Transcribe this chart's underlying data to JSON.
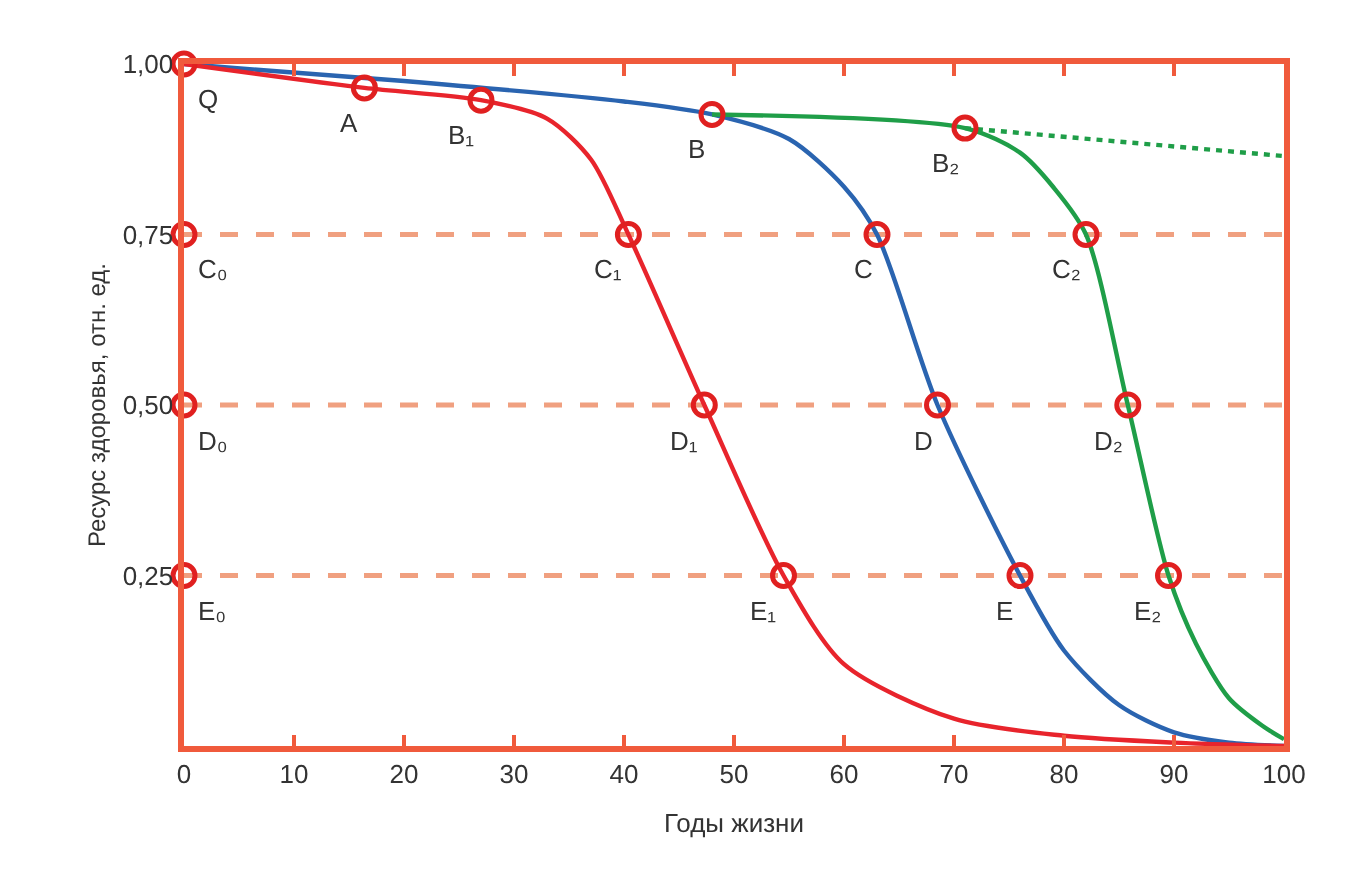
{
  "chart_data": {
    "type": "line",
    "xlabel": "Годы жизни",
    "ylabel": "Ресурс здоровья, отн. ед.",
    "xlim": [
      0,
      100
    ],
    "xticks": [
      0,
      10,
      20,
      30,
      40,
      50,
      60,
      70,
      80,
      90,
      100
    ],
    "ylim": [
      0,
      1
    ],
    "yticks": [
      {
        "value": 0.25,
        "label": "0,25"
      },
      {
        "value": 0.5,
        "label": "0,50"
      },
      {
        "value": 0.75,
        "label": "0,75"
      },
      {
        "value": 1,
        "label": "1,00"
      }
    ],
    "grid": false,
    "marker": "none",
    "line_style": "solid",
    "series": [
      {
        "color": "#2a64b0",
        "x": [
          0,
          20,
          40,
          48,
          55,
          60,
          63,
          68.5,
          76,
          80,
          85,
          90,
          95,
          100
        ],
        "values": [
          1,
          0.975,
          0.945,
          0.926,
          0.89,
          0.82,
          0.75,
          0.5,
          0.25,
          0.14,
          0.06,
          0.02,
          0.005,
          0
        ]
      },
      {
        "color": "#1f9e48",
        "x": [
          48,
          71,
          76,
          79,
          82,
          85.8,
          89.5,
          92,
          95,
          98,
          100
        ],
        "values": [
          0.926,
          0.906,
          0.87,
          0.82,
          0.75,
          0.5,
          0.25,
          0.15,
          0.07,
          0.03,
          0.01
        ]
      },
      {
        "color": "#1f9e48",
        "line_style": "dotted",
        "x": [
          71,
          100
        ],
        "values": [
          0.906,
          0.865
        ]
      },
      {
        "color": "#e8242c",
        "x": [
          0,
          16.4,
          27,
          33,
          37,
          40.4,
          47.3,
          54.5,
          60,
          70,
          80,
          90,
          100
        ],
        "values": [
          1,
          0.965,
          0.947,
          0.92,
          0.86,
          0.75,
          0.5,
          0.25,
          0.12,
          0.04,
          0.015,
          0.005,
          0
        ]
      },
      {
        "type": "scatter",
        "color": "#e02020",
        "marker": "circle",
        "x": [
          0,
          16.4,
          27,
          48,
          71,
          0,
          40.4,
          63,
          82,
          0,
          47.3,
          68.5,
          85.8,
          0,
          54.5,
          76,
          89.5
        ],
        "values": [
          1,
          0.965,
          0.947,
          0.926,
          0.906,
          0.75,
          0.75,
          0.75,
          0.75,
          0.5,
          0.5,
          0.5,
          0.5,
          0.25,
          0.25,
          0.25,
          0.25
        ]
      }
    ],
    "ref_lines": [
      {
        "axis": "y",
        "value": 0.75,
        "color": "#f0a080",
        "line_style": "dashed"
      },
      {
        "axis": "y",
        "value": 0.5,
        "color": "#f0a080",
        "line_style": "dashed"
      },
      {
        "axis": "y",
        "value": 0.25,
        "color": "#f0a080",
        "line_style": "dashed"
      }
    ],
    "annotations": [
      {
        "text": "Q",
        "x": 0,
        "y": 1
      },
      {
        "text": "A",
        "x": 16.4,
        "y": 0.965
      },
      {
        "text": "B₁",
        "x": 27,
        "y": 0.947
      },
      {
        "text": "B",
        "x": 48,
        "y": 0.926
      },
      {
        "text": "B₂",
        "x": 71,
        "y": 0.906
      },
      {
        "text": "C₀",
        "x": 0,
        "y": 0.75
      },
      {
        "text": "C₁",
        "x": 40.4,
        "y": 0.75
      },
      {
        "text": "C",
        "x": 63,
        "y": 0.75
      },
      {
        "text": "C₂",
        "x": 82,
        "y": 0.75
      },
      {
        "text": "D₀",
        "x": 0,
        "y": 0.5
      },
      {
        "text": "D₁",
        "x": 47.3,
        "y": 0.5
      },
      {
        "text": "D",
        "x": 68.5,
        "y": 0.5
      },
      {
        "text": "D₂",
        "x": 85.8,
        "y": 0.5
      },
      {
        "text": "E₀",
        "x": 0,
        "y": 0.25
      },
      {
        "text": "E₁",
        "x": 54.5,
        "y": 0.25
      },
      {
        "text": "E",
        "x": 76,
        "y": 0.25
      },
      {
        "text": "E₂",
        "x": 89.5,
        "y": 0.25
      }
    ]
  }
}
